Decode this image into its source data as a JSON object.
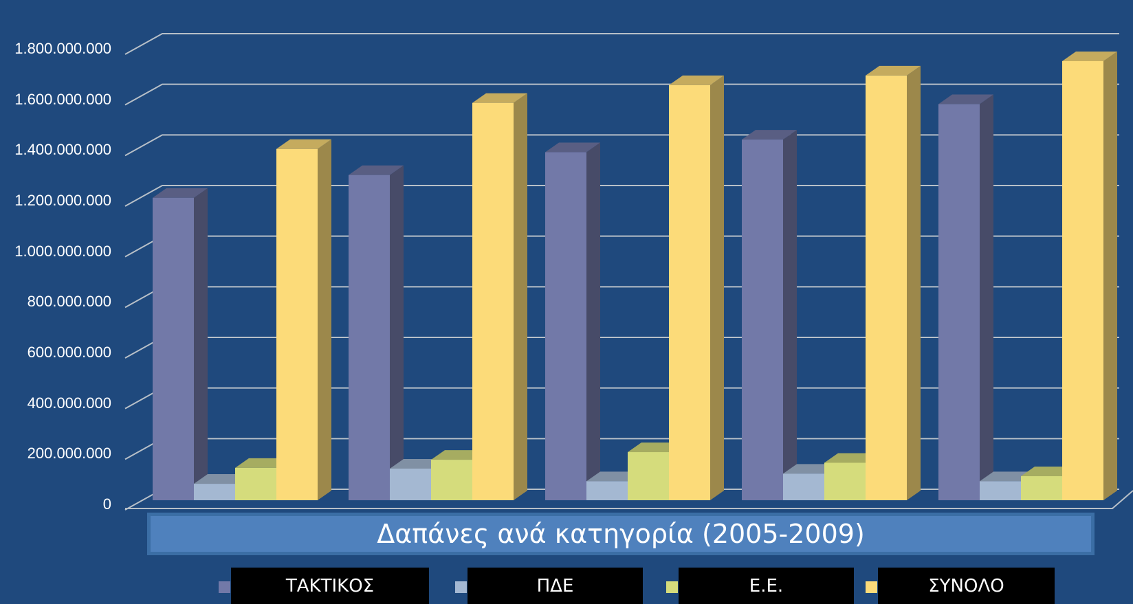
{
  "chart_data": {
    "type": "bar",
    "title": "Δαπάνες ανά κατηγορία (2005-2009)",
    "categories": [
      "",
      "",
      "",
      "",
      ""
    ],
    "series": [
      {
        "name": "ΤΑΚΤΙΚΟΣ",
        "values": [
          1195000000,
          1285000000,
          1375000000,
          1425000000,
          1565000000
        ],
        "color": "#7279a8"
      },
      {
        "name": "ΠΔΕ",
        "values": [
          65000000,
          125000000,
          75000000,
          105000000,
          75000000
        ],
        "color": "#a4b8d2"
      },
      {
        "name": "Ε.Ε.",
        "values": [
          128000000,
          160000000,
          190000000,
          148000000,
          95000000
        ],
        "color": "#d5dc7c"
      },
      {
        "name": "ΣΥΝΟΛΟ",
        "values": [
          1388000000,
          1570000000,
          1640000000,
          1678000000,
          1735000000
        ],
        "color": "#fcdb79"
      }
    ],
    "ylim": [
      0,
      1800000000
    ],
    "ytick_labels": [
      "0",
      "200.000.000",
      "400.000.000",
      "600.000.000",
      "800.000.000",
      "1.000.000.000",
      "1.200.000.000",
      "1.400.000.000",
      "1.600.000.000",
      "1.800.000.000"
    ],
    "grid": true,
    "legend_position": "bottom"
  }
}
